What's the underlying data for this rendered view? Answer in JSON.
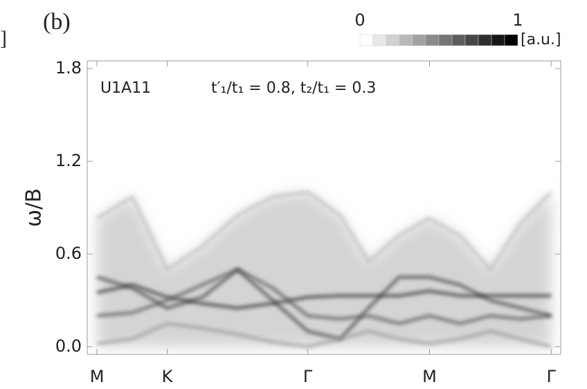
{
  "chart_data": {
    "type": "spectral",
    "panel_label": "(b)",
    "left_fragment": "]",
    "y_label": "ω/B",
    "annotations": [
      "U1A11",
      "t′₁/t₁ = 0.8, t₂/t₁ = 0.3"
    ],
    "colorbar": {
      "ticks": [
        0,
        1
      ],
      "label": "[a.u.]"
    },
    "x": [
      0,
      0.29,
      0.577,
      0.866,
      1.155,
      1.443,
      1.732,
      2.0,
      2.232,
      2.482,
      2.732,
      2.982,
      3.232,
      3.482,
      3.732
    ],
    "xlim": [
      -0.08,
      3.81
    ],
    "xticks": [
      {
        "value": 0,
        "label": "M"
      },
      {
        "value": 0.577,
        "label": "K"
      },
      {
        "value": 1.732,
        "label": "Γ"
      },
      {
        "value": 2.732,
        "label": "M"
      },
      {
        "value": 3.732,
        "label": "Γ"
      }
    ],
    "ylim": [
      -0.05,
      1.85
    ],
    "yticks": [
      {
        "value": 0,
        "label": "0.0"
      },
      0.6,
      1.2,
      1.8
    ],
    "series": [
      {
        "color": "#bdbdbd",
        "values": [
          0.83,
          0.97,
          0.5,
          0.65,
          0.85,
          0.97,
          1.0,
          0.85,
          0.55,
          0.72,
          0.83,
          0.72,
          0.5,
          0.8,
          1.0
        ]
      },
      {
        "color": "#444444",
        "values": [
          0.45,
          0.38,
          0.25,
          0.32,
          0.5,
          0.3,
          0.1,
          0.05,
          0.25,
          0.45,
          0.45,
          0.4,
          0.3,
          0.25,
          0.2
        ]
      },
      {
        "color": "#333333",
        "values": [
          0.35,
          0.4,
          0.32,
          0.28,
          0.25,
          0.28,
          0.32,
          0.33,
          0.33,
          0.33,
          0.36,
          0.33,
          0.33,
          0.33,
          0.33
        ]
      },
      {
        "color": "#555555",
        "values": [
          0.2,
          0.22,
          0.3,
          0.4,
          0.5,
          0.38,
          0.2,
          0.18,
          0.2,
          0.15,
          0.2,
          0.15,
          0.2,
          0.18,
          0.2
        ]
      },
      {
        "color": "#999999",
        "values": [
          0.02,
          0.05,
          0.15,
          0.12,
          0.08,
          0.03,
          0,
          0.05,
          0.1,
          0.05,
          0.02,
          0.05,
          0.1,
          0.05,
          0
        ]
      }
    ]
  }
}
